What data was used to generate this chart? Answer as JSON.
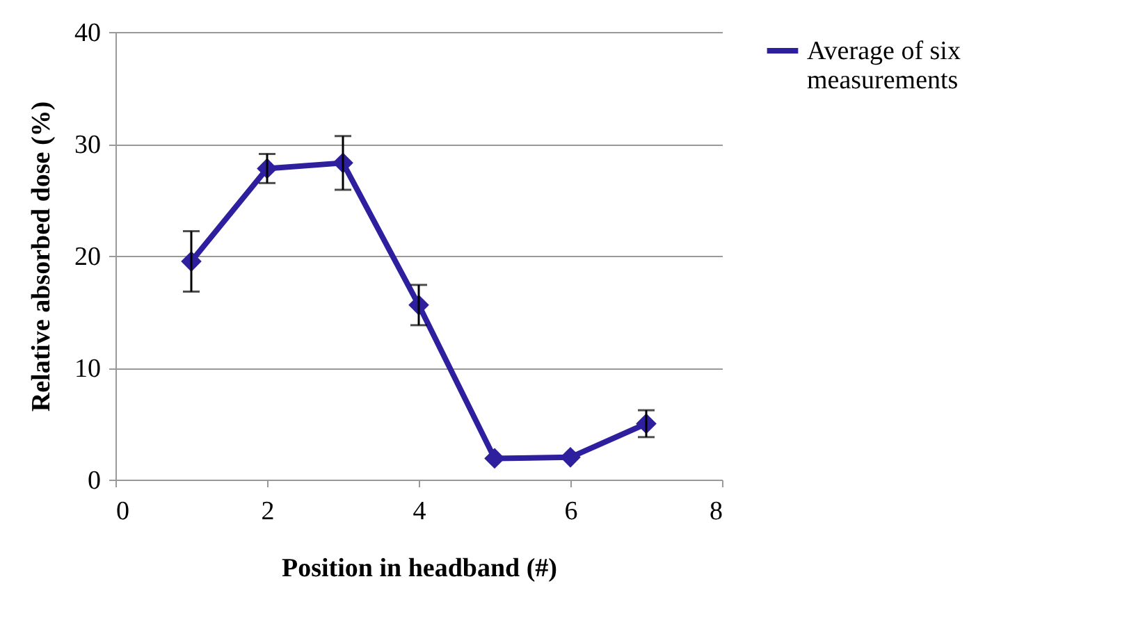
{
  "chart_data": {
    "type": "line",
    "xlabel": "Position in headband (#)",
    "ylabel": "Relative absorbed dose (%)",
    "x": [
      1,
      2,
      3,
      4,
      5,
      6,
      7
    ],
    "series": [
      {
        "name": "Average of six measurements",
        "color": "#2e1f9e",
        "values": [
          19.5,
          27.8,
          28.3,
          15.6,
          1.9,
          2.0,
          5.0
        ],
        "errors": [
          2.7,
          1.3,
          2.4,
          1.8,
          null,
          null,
          1.2
        ]
      }
    ],
    "xlim": [
      0,
      8
    ],
    "xticks": [
      0,
      2,
      4,
      6,
      8
    ],
    "ylim": [
      0,
      40
    ],
    "yticks": [
      0,
      10,
      20,
      30,
      40
    ],
    "grid": "y",
    "legend": "right",
    "marker": "diamond",
    "line_style": "solid"
  }
}
